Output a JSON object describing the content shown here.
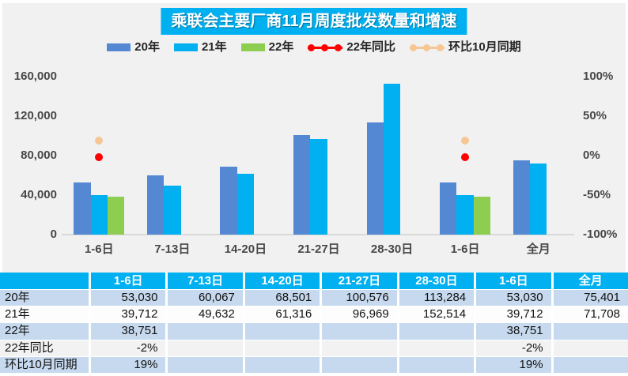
{
  "title": "乘联会主要厂商11月周度批发数量和增速",
  "colors": {
    "accent_cyan": "#00B0F0",
    "bar_2020": "#5588D2",
    "bar_2021": "#00B0F0",
    "bar_2022": "#8DCE50",
    "line_yoy": "#FE0000",
    "line_mom": "#F6C795",
    "panel_bg": "#F1F1F2",
    "axis_line": "#D9D9D9",
    "row_backgrounds": [
      "#C6D9EE",
      "#FDFDFD",
      "#C6D9EE",
      "#F2F2F2",
      "#C6D9EE"
    ]
  },
  "legend": [
    {
      "label": "20年",
      "type": "bar",
      "color": "#5588D2"
    },
    {
      "label": "21年",
      "type": "bar",
      "color": "#00B0F0"
    },
    {
      "label": "22年",
      "type": "bar",
      "color": "#8DCE50"
    },
    {
      "label": "22年同比",
      "type": "line",
      "color": "#FE0000"
    },
    {
      "label": "环比10月同期",
      "type": "line",
      "color": "#F6C795"
    }
  ],
  "chart_data": {
    "type": "bar",
    "title": "乘联会主要厂商11月周度批发数量和增速",
    "categories": [
      "1-6日",
      "7-13日",
      "14-20日",
      "21-27日",
      "28-30日",
      "1-6日",
      "全月"
    ],
    "series": [
      {
        "name": "20年",
        "type": "bar",
        "axis": "left",
        "color": "#5588D2",
        "values": [
          53030,
          60067,
          68501,
          100576,
          113284,
          53030,
          75401
        ]
      },
      {
        "name": "21年",
        "type": "bar",
        "axis": "left",
        "color": "#00B0F0",
        "values": [
          39712,
          49632,
          61316,
          96969,
          152514,
          39712,
          71708
        ]
      },
      {
        "name": "22年",
        "type": "bar",
        "axis": "left",
        "color": "#8DCE50",
        "values": [
          38751,
          null,
          null,
          null,
          null,
          38751,
          null
        ]
      },
      {
        "name": "22年同比",
        "type": "point",
        "axis": "right",
        "color": "#FE0000",
        "values": [
          -2,
          null,
          null,
          null,
          null,
          -2,
          null
        ]
      },
      {
        "name": "环比10月同期",
        "type": "point",
        "axis": "right",
        "color": "#F6C795",
        "values": [
          19,
          null,
          null,
          null,
          null,
          19,
          null
        ]
      }
    ],
    "left_axis": {
      "min": 0,
      "max": 160000,
      "ticks": [
        "160,000",
        "120,000",
        "80,000",
        "40,000",
        "0"
      ]
    },
    "right_axis": {
      "min": -100,
      "max": 100,
      "ticks": [
        "100%",
        "50%",
        "0%",
        "-50%",
        "-100%"
      ]
    },
    "grid": false,
    "legend_position": "top"
  },
  "table": {
    "header": [
      "",
      "1-6日",
      "7-13日",
      "14-20日",
      "21-27日",
      "28-30日",
      "1-6日",
      "全月"
    ],
    "rows": [
      {
        "label": "20年",
        "cells": [
          "53,030",
          "60,067",
          "68,501",
          "100,576",
          "113,284",
          "53,030",
          "75,401"
        ]
      },
      {
        "label": "21年",
        "cells": [
          "39,712",
          "49,632",
          "61,316",
          "96,969",
          "152,514",
          "39,712",
          "71,708"
        ]
      },
      {
        "label": "22年",
        "cells": [
          "38,751",
          "",
          "",
          "",
          "",
          "38,751",
          ""
        ]
      },
      {
        "label": "22年同比",
        "cells": [
          "-2%",
          "",
          "",
          "",
          "",
          "-2%",
          ""
        ]
      },
      {
        "label": "环比10月同期",
        "cells": [
          "19%",
          "",
          "",
          "",
          "",
          "19%",
          ""
        ]
      }
    ]
  }
}
